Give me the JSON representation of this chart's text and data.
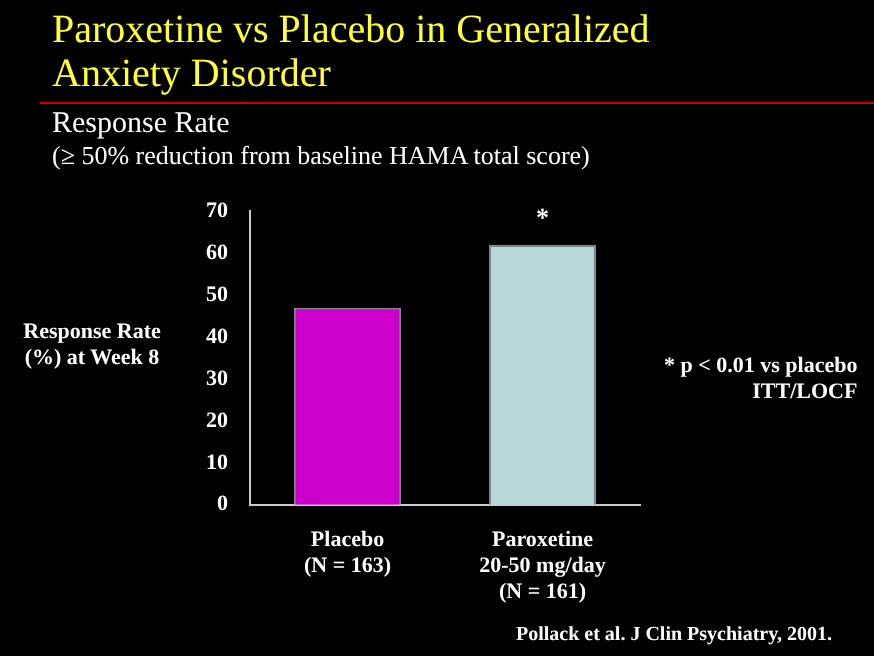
{
  "chart_data": {
    "type": "bar",
    "title": "Paroxetine vs Placebo in Generalized Anxiety Disorder",
    "subtitle": "Response Rate\n(≥ 50% reduction from baseline HAMA total score)",
    "ylabel": "Response Rate (%) at Week 8",
    "categories": [
      "Placebo\n(N = 163)",
      "Paroxetine\n20-50 mg/day\n(N = 161)"
    ],
    "values": [
      47,
      62
    ],
    "colors": [
      "#cc00cc",
      "#b8d8d8"
    ],
    "ylim": [
      0,
      70
    ],
    "yticks": [
      0,
      10,
      20,
      30,
      40,
      50,
      60,
      70
    ],
    "grid": false,
    "annotations": [
      {
        "text": "*",
        "x": "Paroxetine\n20-50 mg/day\n(N = 161)",
        "y": 62
      },
      "* p < 0.01 vs placebo\nITT/LOCF",
      "Pollack et al. J Clin Psychiatry, 2001."
    ]
  }
}
